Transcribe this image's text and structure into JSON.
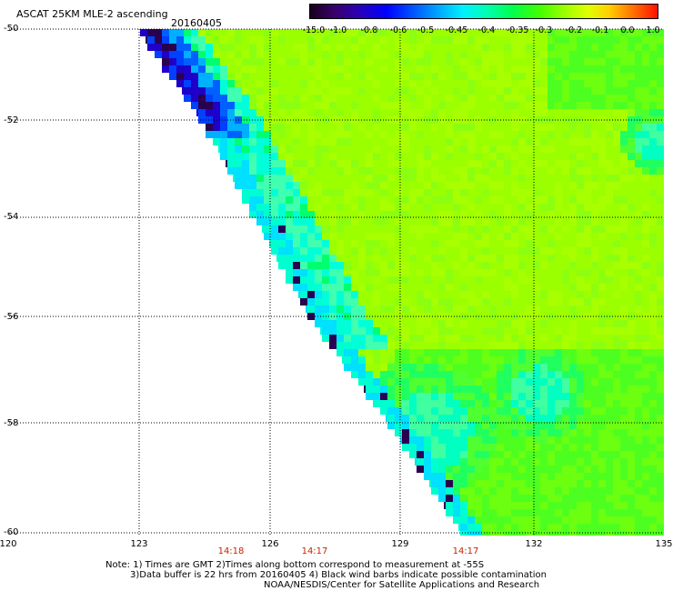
{
  "header": {
    "title": "ASCAT 25KM MLE-2 ascending",
    "date": "20160405"
  },
  "colorbar": {
    "labels": [
      "-15.0",
      "-1.0",
      "-0.8",
      "-0.6",
      "-0.5",
      "-0.45",
      "-0.4",
      "-0.35",
      "-0.3",
      "-0.2",
      "-0.1",
      "0.0",
      "1.0"
    ]
  },
  "axes": {
    "lat_labels": [
      "-50",
      "-52",
      "-54",
      "-56",
      "-58",
      "-60"
    ],
    "lon_labels": [
      "120",
      "123",
      "126",
      "129",
      "132",
      "135"
    ],
    "times": [
      "14:18",
      "14:17",
      "14:17"
    ]
  },
  "notes": {
    "line1": "Note: 1) Times are GMT 2)Times along bottom correspond to measurement at -55S",
    "line2": "3)Data buffer is 22 hrs from 20160405 4) Black wind barbs indicate possible contamination",
    "line3": "NOAA/NESDIS/Center for Satellite Applications and Research"
  },
  "colors": {
    "dominant": "#9cff00",
    "cyan_band": "#00ffd8",
    "deep_blue": "#0020ff",
    "dark_purple": "#2a0050",
    "time_label": "#cc2200"
  }
}
